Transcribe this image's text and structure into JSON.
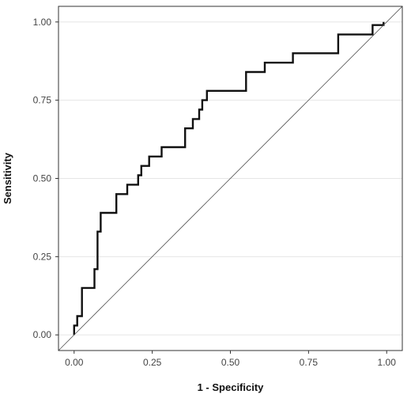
{
  "chart_data": {
    "type": "line",
    "title": "",
    "xlabel": "1 - Specificity",
    "ylabel": "Sensitivity",
    "xlim": [
      0,
      1
    ],
    "ylim": [
      0,
      1
    ],
    "x_ticks": [
      "0.00",
      "0.25",
      "0.50",
      "0.75",
      "1.00"
    ],
    "y_ticks": [
      "0.00",
      "0.25",
      "0.50",
      "0.75",
      "1.00"
    ],
    "grid": "horizontal",
    "legend": "none",
    "series": [
      {
        "style": "step",
        "color": "#111111",
        "points": [
          [
            0.0,
            0.0
          ],
          [
            0.0,
            0.03
          ],
          [
            0.01,
            0.03
          ],
          [
            0.01,
            0.06
          ],
          [
            0.025,
            0.06
          ],
          [
            0.025,
            0.15
          ],
          [
            0.065,
            0.15
          ],
          [
            0.065,
            0.21
          ],
          [
            0.075,
            0.21
          ],
          [
            0.075,
            0.33
          ],
          [
            0.085,
            0.33
          ],
          [
            0.085,
            0.39
          ],
          [
            0.135,
            0.39
          ],
          [
            0.135,
            0.45
          ],
          [
            0.17,
            0.45
          ],
          [
            0.17,
            0.48
          ],
          [
            0.205,
            0.48
          ],
          [
            0.205,
            0.51
          ],
          [
            0.215,
            0.51
          ],
          [
            0.215,
            0.54
          ],
          [
            0.24,
            0.54
          ],
          [
            0.24,
            0.57
          ],
          [
            0.28,
            0.57
          ],
          [
            0.28,
            0.6
          ],
          [
            0.355,
            0.6
          ],
          [
            0.355,
            0.66
          ],
          [
            0.38,
            0.66
          ],
          [
            0.38,
            0.69
          ],
          [
            0.4,
            0.69
          ],
          [
            0.4,
            0.72
          ],
          [
            0.41,
            0.72
          ],
          [
            0.41,
            0.75
          ],
          [
            0.425,
            0.75
          ],
          [
            0.425,
            0.78
          ],
          [
            0.55,
            0.78
          ],
          [
            0.55,
            0.84
          ],
          [
            0.61,
            0.84
          ],
          [
            0.61,
            0.87
          ],
          [
            0.7,
            0.87
          ],
          [
            0.7,
            0.9
          ],
          [
            0.845,
            0.9
          ],
          [
            0.845,
            0.96
          ],
          [
            0.955,
            0.96
          ],
          [
            0.955,
            0.99
          ],
          [
            0.99,
            0.99
          ],
          [
            0.99,
            1.0
          ]
        ]
      },
      {
        "style": "reference",
        "color": "#555555",
        "points": [
          [
            -0.05,
            -0.05
          ],
          [
            1.05,
            1.05
          ]
        ]
      }
    ]
  }
}
